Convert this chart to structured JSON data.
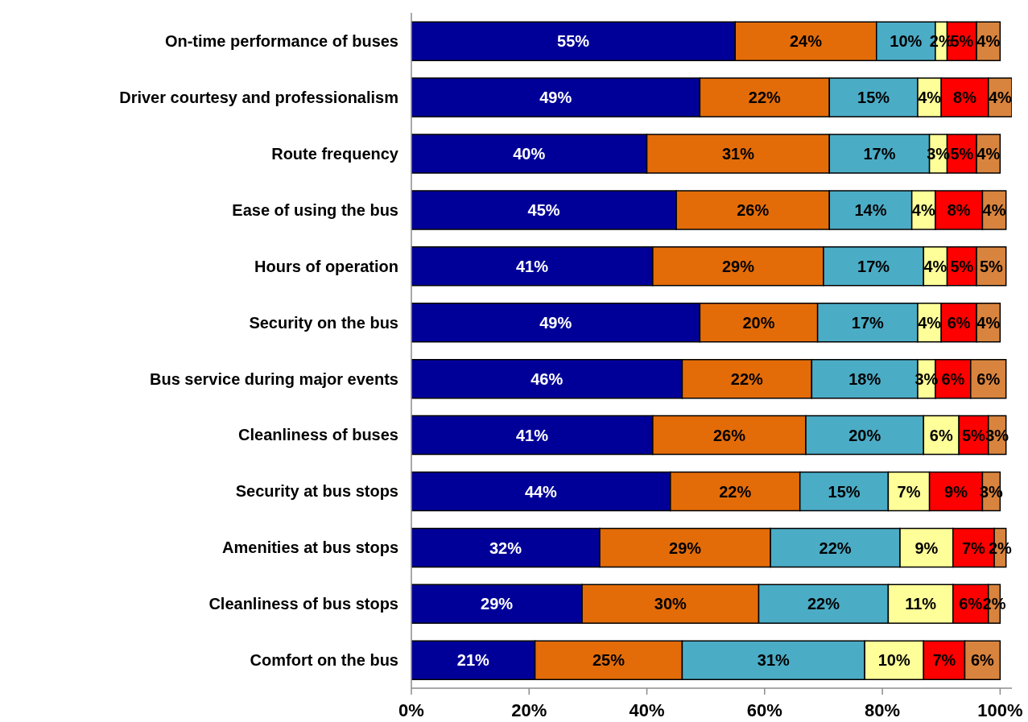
{
  "chart_data": {
    "type": "bar",
    "orientation": "horizontal",
    "stacked": true,
    "categories": [
      "On-time performance of buses",
      "Driver courtesy and professionalism",
      "Route frequency",
      "Ease of using the bus",
      "Hours of operation",
      "Security on the bus",
      "Bus service during major events",
      "Cleanliness of buses",
      "Security at bus stops",
      "Amenities at bus stops",
      "Cleanliness of bus stops",
      "Comfort on the bus"
    ],
    "series": [
      {
        "color": "#000099",
        "values": [
          55,
          49,
          40,
          45,
          41,
          49,
          46,
          41,
          44,
          32,
          29,
          21
        ],
        "value_labels": [
          "55%",
          "49%",
          "40%",
          "45%",
          "41%",
          "49%",
          "46%",
          "41%",
          "44%",
          "32%",
          "29%",
          "21%"
        ]
      },
      {
        "color": "#e36c09",
        "values": [
          24,
          22,
          31,
          26,
          29,
          20,
          22,
          26,
          22,
          29,
          30,
          25
        ],
        "value_labels": [
          "24%",
          "22%",
          "31%",
          "26%",
          "29%",
          "20%",
          "22%",
          "26%",
          "22%",
          "29%",
          "30%",
          "25%"
        ]
      },
      {
        "color": "#4bacc6",
        "values": [
          10,
          15,
          17,
          14,
          17,
          17,
          18,
          20,
          15,
          22,
          22,
          31
        ],
        "value_labels": [
          "10%",
          "15%",
          "17%",
          "14%",
          "17%",
          "17%",
          "18%",
          "20%",
          "15%",
          "22%",
          "22%",
          "31%"
        ]
      },
      {
        "color": "#ffff99",
        "values": [
          2,
          4,
          3,
          4,
          4,
          4,
          3,
          6,
          7,
          9,
          11,
          10
        ],
        "value_labels": [
          "2%",
          "4%",
          "3%",
          "4%",
          "4%",
          "4%",
          "3%",
          "6%",
          "7%",
          "9%",
          "11%",
          "10%"
        ]
      },
      {
        "color": "#ff0000",
        "values": [
          5,
          8,
          5,
          8,
          5,
          6,
          6,
          5,
          9,
          7,
          6,
          7
        ],
        "value_labels": [
          "5%",
          "8%",
          "5%",
          "8%",
          "5%",
          "6%",
          "6%",
          "5%",
          "9%",
          "7%",
          "6%",
          "7%"
        ]
      },
      {
        "color": "#d9843e",
        "values": [
          4,
          4,
          4,
          4,
          5,
          4,
          6,
          3,
          3,
          2,
          2,
          6
        ],
        "value_labels": [
          "4%",
          "4%",
          "4%",
          "4%",
          "5%",
          "4%",
          "6%",
          "3%",
          "3%",
          "2%",
          "2%",
          "6%"
        ]
      }
    ],
    "xlim": [
      0,
      102
    ],
    "xticks": [
      {
        "value": 0,
        "label": "0%"
      },
      {
        "value": 20,
        "label": "20%"
      },
      {
        "value": 40,
        "label": "40%"
      },
      {
        "value": 60,
        "label": "60%"
      },
      {
        "value": 80,
        "label": "80%"
      },
      {
        "value": 100,
        "label": "100%"
      }
    ]
  }
}
